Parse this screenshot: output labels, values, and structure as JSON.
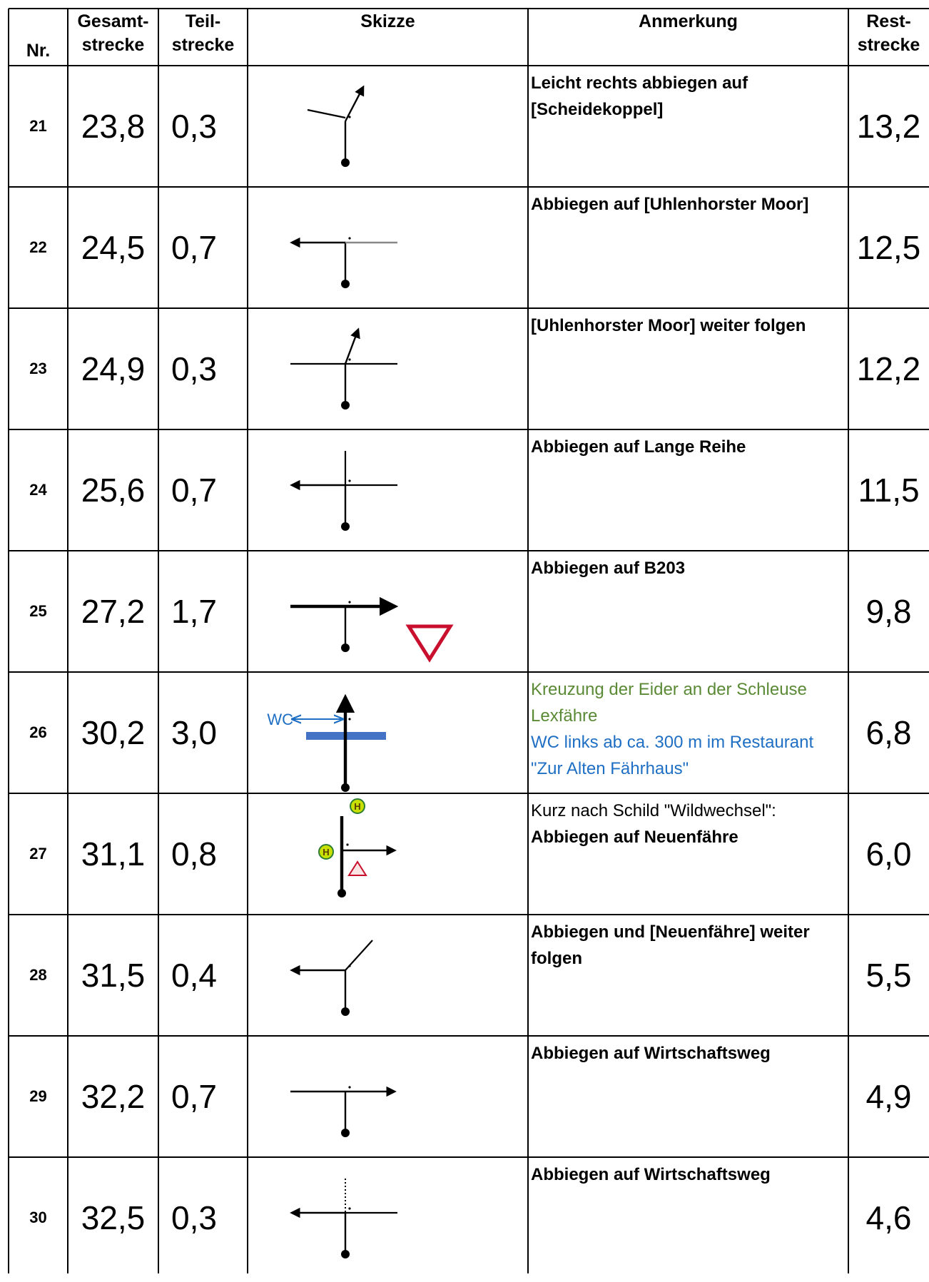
{
  "header": {
    "nr": "Nr.",
    "gesamt_1": "Gesamt-",
    "gesamt_2": "strecke",
    "teil_1": "Teil-",
    "teil_2": "strecke",
    "skizze": "Skizze",
    "anmerkung": "Anmerkung",
    "rest_1": "Rest-",
    "rest_2": "strecke"
  },
  "colors": {
    "grid": "#000000",
    "note_green": "#5b8a36",
    "note_blue": "#1f6fc4",
    "yield_sign": "#c8102e",
    "bridge_bar": "#4472c4",
    "bus_stop": "#c8e000"
  },
  "rows": [
    {
      "nr": "21",
      "gesamt": "23,8",
      "teil": "0,3",
      "rest": "13,2",
      "sketch": "slight-right-icon",
      "notes": [
        {
          "text": "Leicht rechts abbiegen auf",
          "style": "b"
        },
        {
          "text": "[Scheidekoppel]",
          "style": "b"
        }
      ]
    },
    {
      "nr": "22",
      "gesamt": "24,5",
      "teil": "0,7",
      "rest": "12,5",
      "sketch": "turn-left-t-icon",
      "notes": [
        {
          "text": "Abbiegen auf [Uhlenhorster Moor]",
          "style": "b"
        }
      ]
    },
    {
      "nr": "23",
      "gesamt": "24,9",
      "teil": "0,3",
      "rest": "12,2",
      "sketch": "cross-slight-right-icon",
      "notes": [
        {
          "text": "[Uhlenhorster Moor] weiter folgen",
          "style": "b"
        }
      ]
    },
    {
      "nr": "24",
      "gesamt": "25,6",
      "teil": "0,7",
      "rest": "11,5",
      "sketch": "cross-left-icon",
      "notes": [
        {
          "text": "Abbiegen auf Lange Reihe",
          "style": "b"
        }
      ]
    },
    {
      "nr": "25",
      "gesamt": "27,2",
      "teil": "1,7",
      "rest": "9,8",
      "sketch": "turn-right-main-road-yield-icon",
      "notes": [
        {
          "text": "Abbiegen auf B203",
          "style": "b"
        }
      ]
    },
    {
      "nr": "26",
      "gesamt": "30,2",
      "teil": "3,0",
      "rest": "6,8",
      "sketch": "straight-bridge-wc-icon",
      "sketch_label": "WC",
      "notes": [
        {
          "text": "Kreuzung der Eider an der Schleuse",
          "style": "green"
        },
        {
          "text": "Lexfähre",
          "style": "green"
        },
        {
          "text": "WC links ab ca. 300 m im Restaurant",
          "style": "blue"
        },
        {
          "text": "\"Zur Alten Fährhaus\"",
          "style": "blue"
        }
      ]
    },
    {
      "nr": "27",
      "gesamt": "31,1",
      "teil": "0,8",
      "rest": "6,0",
      "sketch": "turn-right-bus-stop-icon",
      "sketch_label": "H",
      "notes": [
        {
          "text": "Kurz nach Schild \"Wildwechsel\":",
          "style": "plain"
        },
        {
          "text": "Abbiegen auf Neuenfähre",
          "style": "b"
        }
      ]
    },
    {
      "nr": "28",
      "gesamt": "31,5",
      "teil": "0,4",
      "rest": "5,5",
      "sketch": "fork-left-icon",
      "notes": [
        {
          "text": "Abbiegen und [Neuenfähre] weiter",
          "style": "b"
        },
        {
          "text": "folgen",
          "style": "b"
        }
      ]
    },
    {
      "nr": "29",
      "gesamt": "32,2",
      "teil": "0,7",
      "rest": "4,9",
      "sketch": "turn-right-t-icon",
      "notes": [
        {
          "text": "Abbiegen auf Wirtschaftsweg",
          "style": "b"
        }
      ]
    },
    {
      "nr": "30",
      "gesamt": "32,5",
      "teil": "0,3",
      "rest": "4,6",
      "sketch": "cross-left-dotted-icon",
      "notes": [
        {
          "text": "Abbiegen auf Wirtschaftsweg",
          "style": "b"
        }
      ]
    }
  ]
}
